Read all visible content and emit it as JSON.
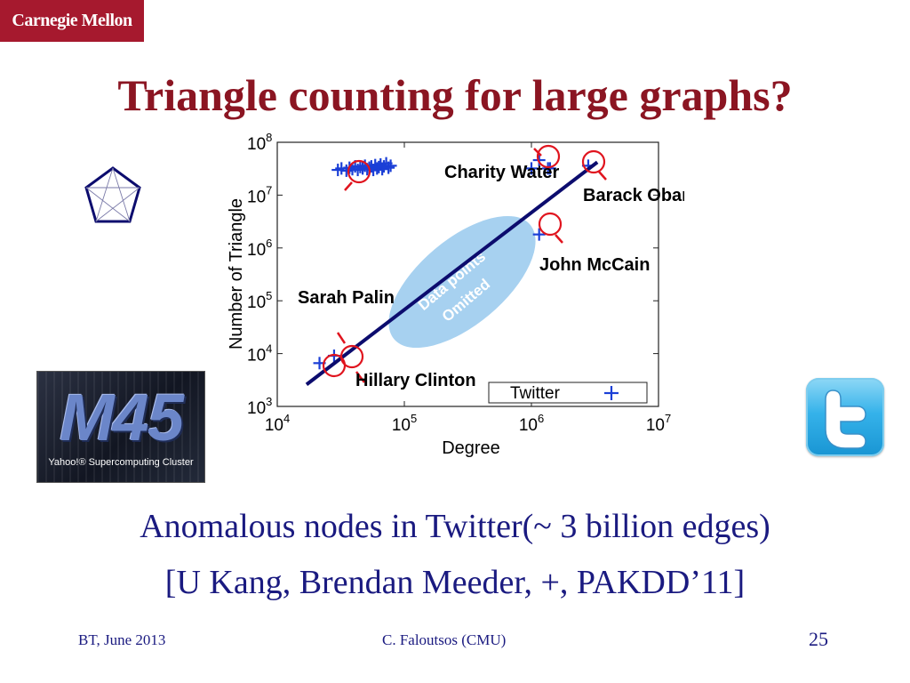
{
  "logo": {
    "text": "Carnegie Mellon"
  },
  "title": "Triangle counting for large graphs?",
  "m45": {
    "mark": "M45",
    "caption": "Yahoo!® Supercomputing Cluster"
  },
  "captions": {
    "line1": "Anomalous nodes in Twitter(~ 3 billion edges)",
    "line2": "[U Kang, Brendan Meeder, +, PAKDD’11]"
  },
  "footer": {
    "left": "BT, June 2013",
    "center": "C. Faloutsos (CMU)",
    "page": "25"
  },
  "colors": {
    "title": "#8b1522",
    "text": "#1a1a80",
    "logo_bg": "#a6192e",
    "points": "#1b3fd6",
    "fit": "#0c0c6e",
    "circles": "#e0141e",
    "ellipse": "#a7d1f0"
  },
  "icons": [
    "pentagon-graph-icon",
    "twitter-bird-icon"
  ],
  "chart_data": {
    "type": "scatter",
    "xlabel": "Degree",
    "ylabel": "Number of Triangle",
    "xscale": "log",
    "yscale": "log",
    "xlim": [
      10000,
      10000000
    ],
    "ylim": [
      1000,
      100000000
    ],
    "xticks": [
      "10^4",
      "10^5",
      "10^6",
      "10^7"
    ],
    "yticks": [
      "10^3",
      "10^4",
      "10^5",
      "10^6",
      "10^7",
      "10^8"
    ],
    "legend": {
      "label": "Twitter",
      "marker": "+",
      "position": "bottom-right"
    },
    "series": [
      {
        "name": "Twitter",
        "marker": "+",
        "points": [
          [
            21500,
            6600
          ],
          [
            28000,
            9100
          ],
          [
            30000,
            30000000
          ],
          [
            32000,
            32000000
          ],
          [
            35000,
            29000000
          ],
          [
            37000,
            33000000
          ],
          [
            39000,
            31000000
          ],
          [
            41000,
            35000000
          ],
          [
            43000,
            30000000
          ],
          [
            45000,
            34000000
          ],
          [
            47000,
            32000000
          ],
          [
            49000,
            36000000
          ],
          [
            51000,
            31000000
          ],
          [
            53000,
            33000000
          ],
          [
            55000,
            35000000
          ],
          [
            57000,
            30000000
          ],
          [
            59000,
            37000000
          ],
          [
            61000,
            32000000
          ],
          [
            63000,
            34000000
          ],
          [
            65000,
            38000000
          ],
          [
            67000,
            31000000
          ],
          [
            69000,
            35000000
          ],
          [
            72000,
            40000000
          ],
          [
            75000,
            33000000
          ],
          [
            78000,
            36000000
          ],
          [
            1000000,
            32000000
          ],
          [
            1150000,
            46000000
          ],
          [
            1350000,
            32000000
          ],
          [
            1400000,
            32000000
          ],
          [
            2800000,
            36000000
          ],
          [
            1150000,
            1800000
          ]
        ]
      }
    ],
    "fit_line": {
      "from": [
        17000,
        2600
      ],
      "to": [
        3300000,
        42000000
      ]
    },
    "ellipse_label": "Data points Omitted",
    "annotations": [
      {
        "text": "Charity Water"
      },
      {
        "text": "Barack Obama"
      },
      {
        "text": "John McCain"
      },
      {
        "text": "Sarah Palin"
      },
      {
        "text": "Hillary Clinton"
      }
    ]
  }
}
